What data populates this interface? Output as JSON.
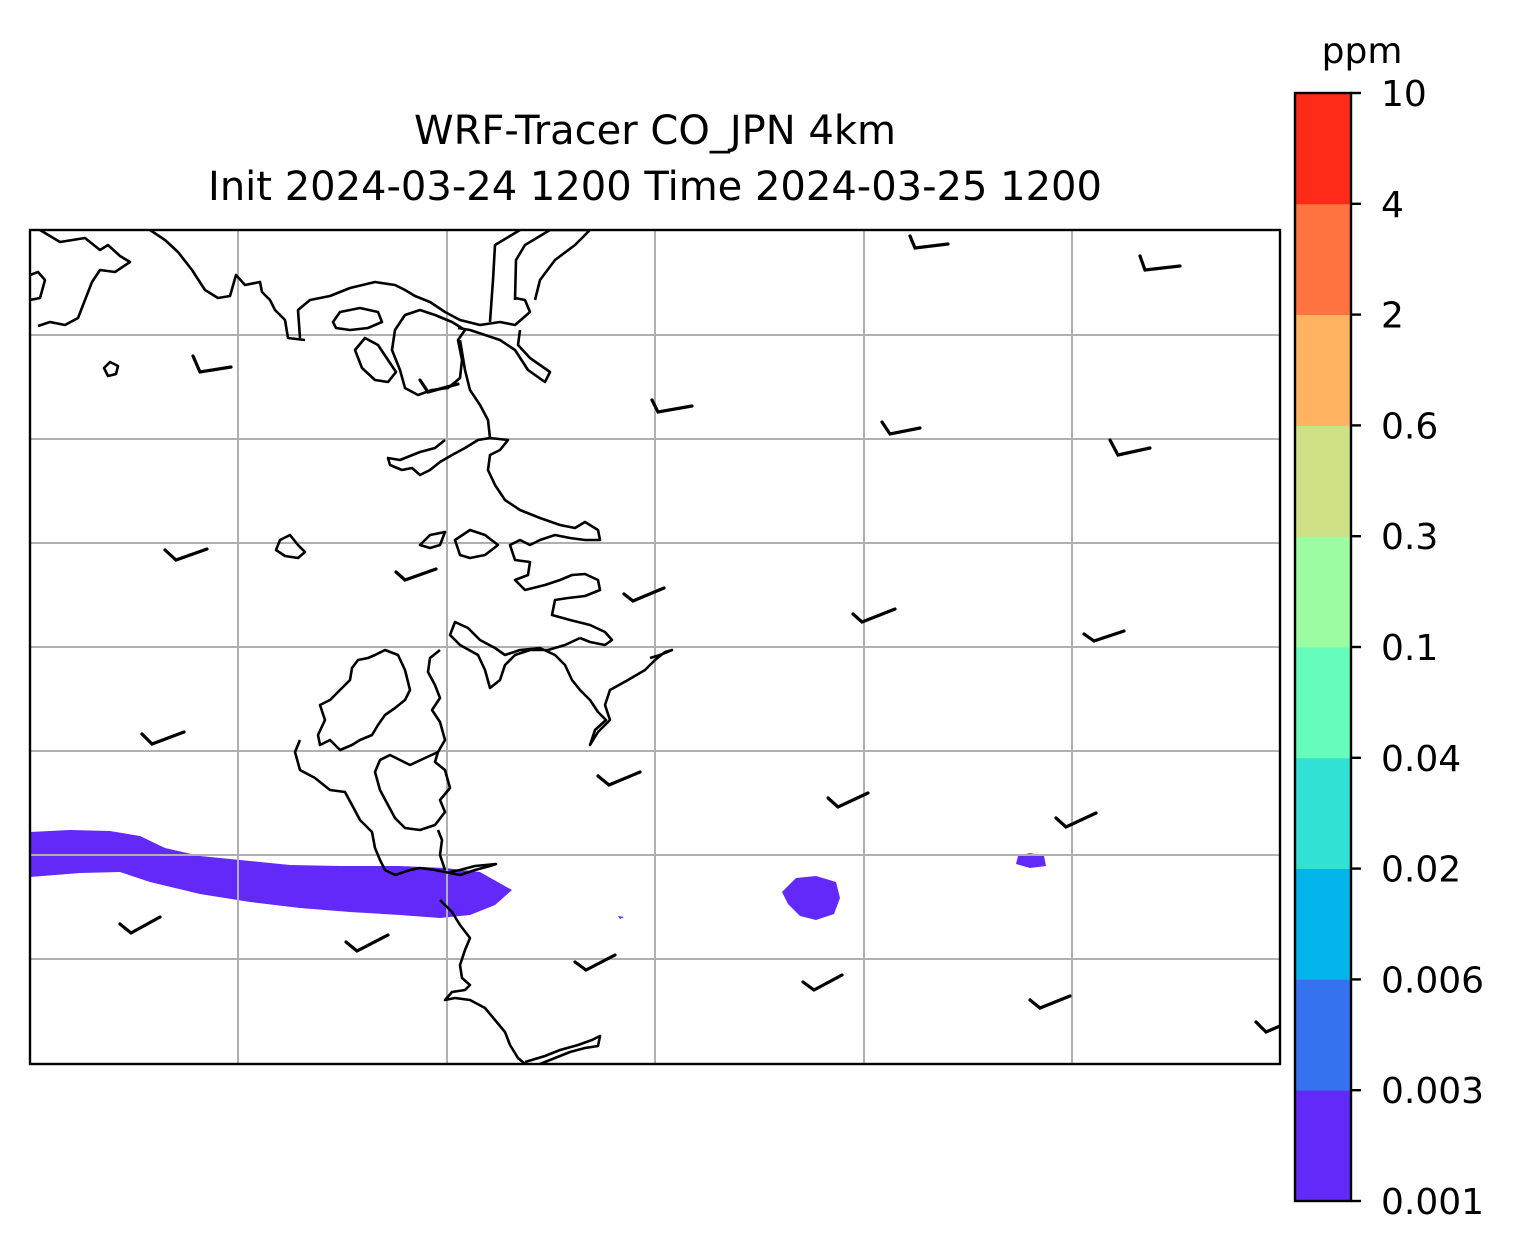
{
  "title": {
    "line1": "WRF-Tracer CO_JPN 4km",
    "line2": "Init 2024-03-24 1200 Time 2024-03-25 1200"
  },
  "colorbar": {
    "unit": "ppm",
    "levels": [
      "0.001",
      "0.003",
      "0.006",
      "0.02",
      "0.04",
      "0.1",
      "0.3",
      "0.6",
      "2",
      "4",
      "10"
    ],
    "colors": [
      "#6329f9",
      "#3572f0",
      "#02b4ec",
      "#32e1d6",
      "#66fcbc",
      "#9bfca1",
      "#cfe187",
      "#ffb360",
      "#ff7440",
      "#ff2a17"
    ]
  },
  "map": {
    "coastline_color": "#000000",
    "grid_color": "#b0b0b0",
    "tracer_color": "#6329f9",
    "wind_barb_color": "#000000"
  }
}
